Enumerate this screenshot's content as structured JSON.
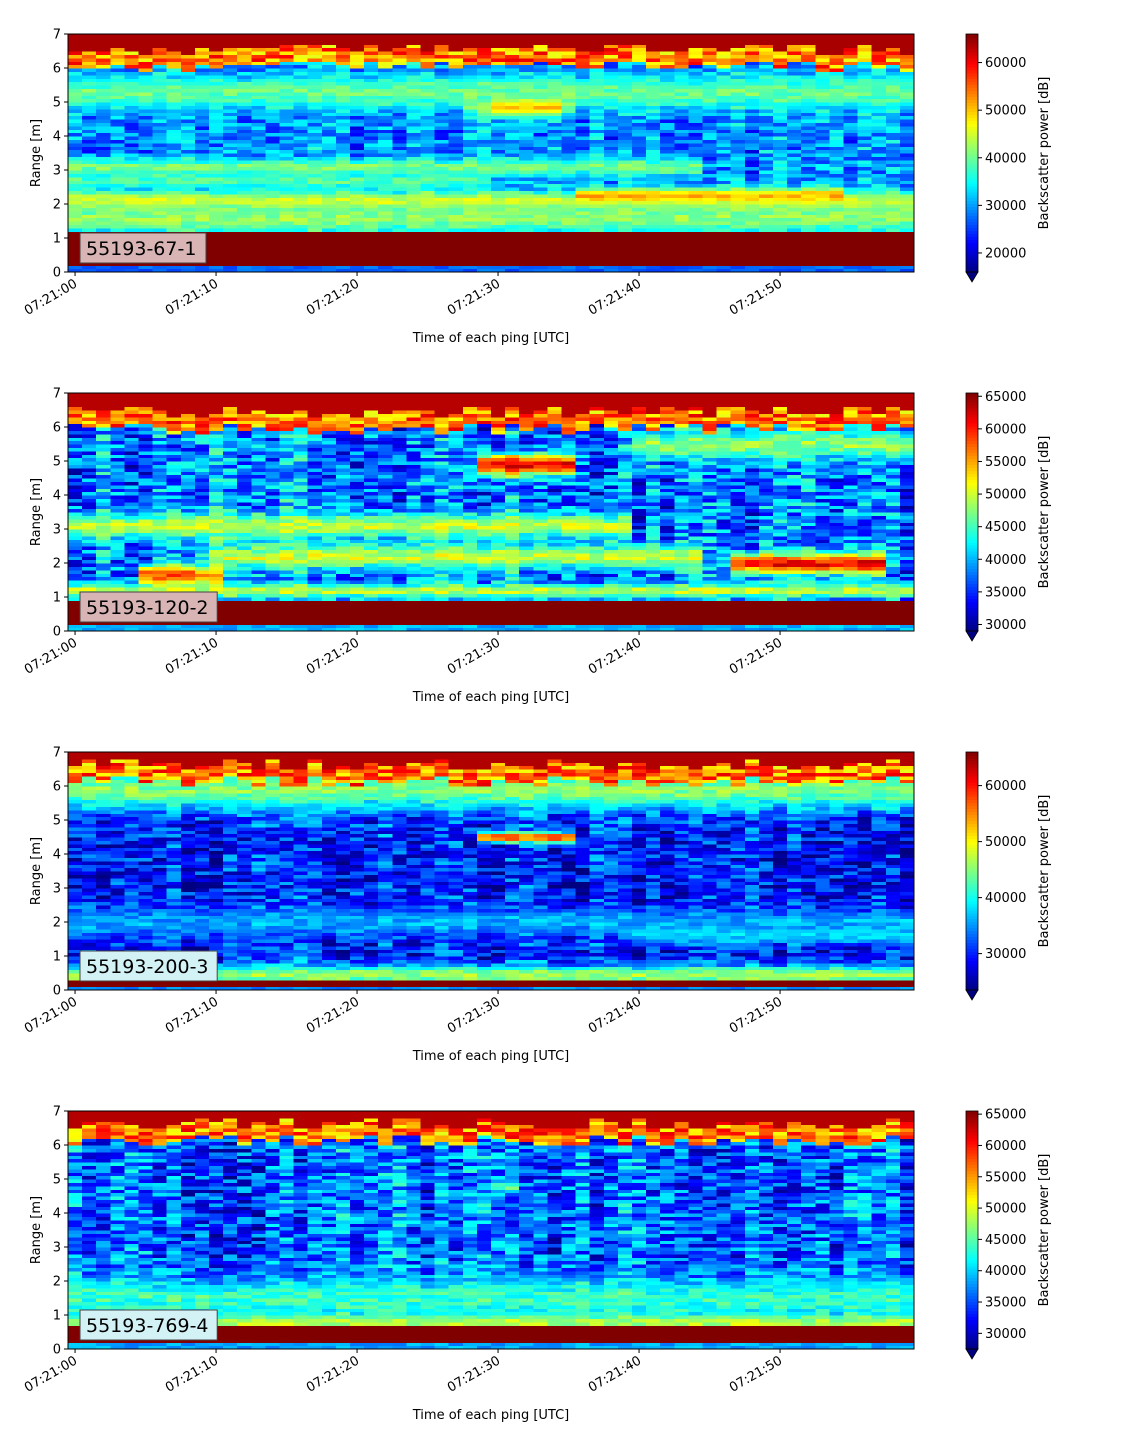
{
  "chart_data": [
    {
      "type": "heatmap",
      "label": "55193-67-1",
      "label_box_color": "#d8b4b4",
      "xlabel": "Time of each ping [UTC]",
      "ylabel": "Range [m]",
      "xticks": [
        "07:21:00",
        "07:21:10",
        "07:21:20",
        "07:21:30",
        "07:21:40",
        "07:21:50"
      ],
      "xlim_seconds": [
        -0.5,
        59.5
      ],
      "ylim": [
        0,
        7
      ],
      "yticks": [
        0,
        1,
        2,
        3,
        4,
        5,
        6,
        7
      ],
      "colorbar_label": "Backscatter power [dB]",
      "colorbar_ticks": [
        20000,
        30000,
        40000,
        50000,
        60000
      ],
      "clim": [
        16000,
        66000
      ],
      "features": {
        "bottom_strong_band_m": [
          0.2,
          1.15
        ],
        "surface_band_m": [
          6.5,
          7.0
        ],
        "background": 29000,
        "mid_layers": [
          {
            "depth": 2.1,
            "level": 46000,
            "width": 0.3,
            "from": 0,
            "to": 60
          },
          {
            "depth": 2.25,
            "level": 52000,
            "width": 0.2,
            "from": 36,
            "to": 55
          },
          {
            "depth": 3.1,
            "level": 41000,
            "width": 0.25,
            "from": 0,
            "to": 45
          },
          {
            "depth": 2.7,
            "level": 39000,
            "width": 0.2,
            "from": 0,
            "to": 30
          },
          {
            "depth": 1.6,
            "level": 42000,
            "width": 0.45,
            "from": 0,
            "to": 60
          },
          {
            "depth": 5.0,
            "level": 44000,
            "width": 0.35,
            "from": 28,
            "to": 36
          },
          {
            "depth": 4.95,
            "level": 62000,
            "width": 0.25,
            "from": 30,
            "to": 35
          },
          {
            "depth": 5.3,
            "level": 40000,
            "width": 0.5,
            "from": 0,
            "to": 60
          }
        ]
      }
    },
    {
      "type": "heatmap",
      "label": "55193-120-2",
      "label_box_color": "#d8b4b4",
      "xlabel": "Time of each ping [UTC]",
      "ylabel": "Range [m]",
      "xticks": [
        "07:21:00",
        "07:21:10",
        "07:21:20",
        "07:21:30",
        "07:21:40",
        "07:21:50"
      ],
      "xlim_seconds": [
        -0.5,
        59.5
      ],
      "ylim": [
        0,
        7
      ],
      "yticks": [
        0,
        1,
        2,
        3,
        4,
        5,
        6,
        7
      ],
      "colorbar_label": "Backscatter power [dB]",
      "colorbar_ticks": [
        30000,
        35000,
        40000,
        45000,
        50000,
        55000,
        60000,
        65000
      ],
      "clim": [
        29000,
        65500
      ],
      "features": {
        "bottom_strong_band_m": [
          0.2,
          0.9
        ],
        "surface_band_m": [
          6.4,
          7.0
        ],
        "background": 38000,
        "mid_layers": [
          {
            "depth": 1.65,
            "level": 58000,
            "width": 0.3,
            "from": 5,
            "to": 11
          },
          {
            "depth": 2.0,
            "level": 61000,
            "width": 0.3,
            "from": 47,
            "to": 58
          },
          {
            "depth": 2.2,
            "level": 50000,
            "width": 0.35,
            "from": 10,
            "to": 45
          },
          {
            "depth": 3.1,
            "level": 50000,
            "width": 0.35,
            "from": 0,
            "to": 40
          },
          {
            "depth": 4.9,
            "level": 62000,
            "width": 0.3,
            "from": 29,
            "to": 36
          },
          {
            "depth": 5.5,
            "level": 48000,
            "width": 0.4,
            "from": 40,
            "to": 60
          },
          {
            "depth": 1.2,
            "level": 50000,
            "width": 0.2,
            "from": 0,
            "to": 60
          }
        ]
      }
    },
    {
      "type": "heatmap",
      "label": "55193-200-3",
      "label_box_color": "#d2f2f6",
      "xlabel": "Time of each ping [UTC]",
      "ylabel": "Range [m]",
      "xticks": [
        "07:21:00",
        "07:21:10",
        "07:21:20",
        "07:21:30",
        "07:21:40",
        "07:21:50"
      ],
      "xlim_seconds": [
        -0.5,
        59.5
      ],
      "ylim": [
        0,
        7
      ],
      "yticks": [
        0,
        1,
        2,
        3,
        4,
        5,
        6,
        7
      ],
      "colorbar_label": "Backscatter power [dB]",
      "colorbar_ticks": [
        30000,
        40000,
        50000,
        60000
      ],
      "clim": [
        23500,
        66000
      ],
      "features": {
        "bottom_strong_band_m": [
          0.1,
          0.3
        ],
        "surface_band_m": [
          6.6,
          7.0
        ],
        "background": 29500,
        "mid_layers": [
          {
            "depth": 0.45,
            "level": 46000,
            "width": 0.3,
            "from": 0,
            "to": 60
          },
          {
            "depth": 1.7,
            "level": 40000,
            "width": 0.3,
            "from": 40,
            "to": 60
          },
          {
            "depth": 2.0,
            "level": 36000,
            "width": 0.4,
            "from": 0,
            "to": 60
          },
          {
            "depth": 4.5,
            "level": 58000,
            "width": 0.15,
            "from": 29,
            "to": 36
          },
          {
            "depth": 5.9,
            "level": 45000,
            "width": 0.6,
            "from": 0,
            "to": 60
          }
        ]
      }
    },
    {
      "type": "heatmap",
      "label": "55193-769-4",
      "label_box_color": "#d2f2f6",
      "xlabel": "Time of each ping [UTC]",
      "ylabel": "Range [m]",
      "xticks": [
        "07:21:00",
        "07:21:10",
        "07:21:20",
        "07:21:30",
        "07:21:40",
        "07:21:50"
      ],
      "xlim_seconds": [
        -0.5,
        59.5
      ],
      "ylim": [
        0,
        7
      ],
      "yticks": [
        0,
        1,
        2,
        3,
        4,
        5,
        6,
        7
      ],
      "colorbar_label": "Backscatter power [dB]",
      "colorbar_ticks": [
        30000,
        35000,
        40000,
        45000,
        50000,
        55000,
        60000,
        65000
      ],
      "clim": [
        27500,
        65500
      ],
      "features": {
        "bottom_strong_band_m": [
          0.25,
          0.65
        ],
        "surface_band_m": [
          6.55,
          7.0
        ],
        "background": 36000,
        "mid_layers": [
          {
            "depth": 0.8,
            "level": 50000,
            "width": 0.25,
            "from": 0,
            "to": 60
          },
          {
            "depth": 1.5,
            "level": 44000,
            "width": 0.6,
            "from": 0,
            "to": 60
          },
          {
            "depth": 4.8,
            "level": 46000,
            "width": 0.2,
            "from": 30,
            "to": 32
          }
        ]
      }
    }
  ]
}
